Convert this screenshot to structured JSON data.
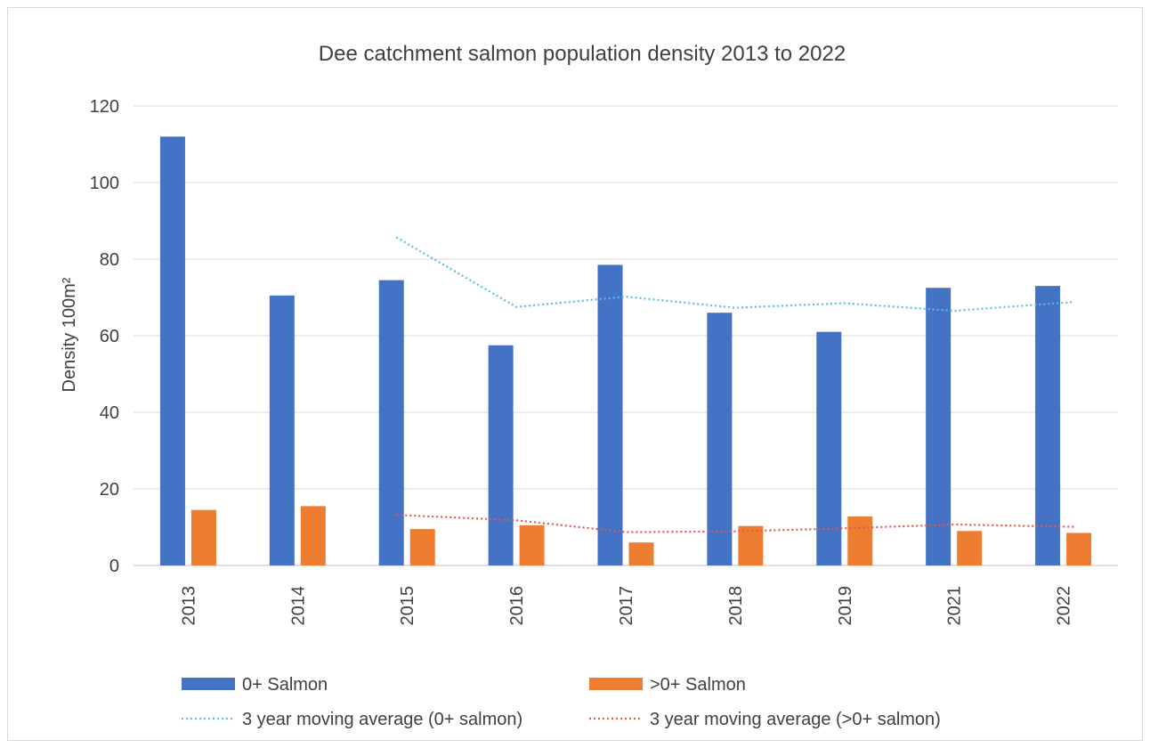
{
  "chart_data": {
    "type": "bar",
    "title": "Dee catchment salmon population density 2013 to 2022",
    "xlabel": "",
    "ylabel": "Density 100m²",
    "ylim": [
      0,
      120
    ],
    "yticks": [
      0,
      20,
      40,
      60,
      80,
      100,
      120
    ],
    "grid": true,
    "legend_position": "bottom",
    "categories": [
      "2013",
      "2014",
      "2015",
      "2016",
      "2017",
      "2018",
      "2019",
      "2021",
      "2022"
    ],
    "series": [
      {
        "name": "0+ Salmon",
        "kind": "bar",
        "color": "#4472c4",
        "values": [
          112,
          70.5,
          74.5,
          57.5,
          78.5,
          66,
          61,
          72.5,
          73
        ]
      },
      {
        "name": ">0+ Salmon",
        "kind": "bar",
        "color": "#ed7d31",
        "values": [
          14.5,
          15.5,
          9.5,
          10.5,
          6,
          10.3,
          12.8,
          9,
          8.5
        ]
      },
      {
        "name": "3 year moving average (0+ salmon)",
        "kind": "line",
        "style": "dotted",
        "color": "#5bc0de",
        "values": [
          null,
          null,
          85.7,
          67.5,
          70.2,
          67.3,
          68.5,
          66.5,
          68.8
        ]
      },
      {
        "name": "3 year moving average (>0+ salmon)",
        "kind": "line",
        "style": "dotted",
        "color": "#e05a4f",
        "values": [
          null,
          null,
          13.2,
          11.8,
          8.7,
          8.9,
          9.7,
          10.7,
          10.1
        ]
      }
    ]
  }
}
